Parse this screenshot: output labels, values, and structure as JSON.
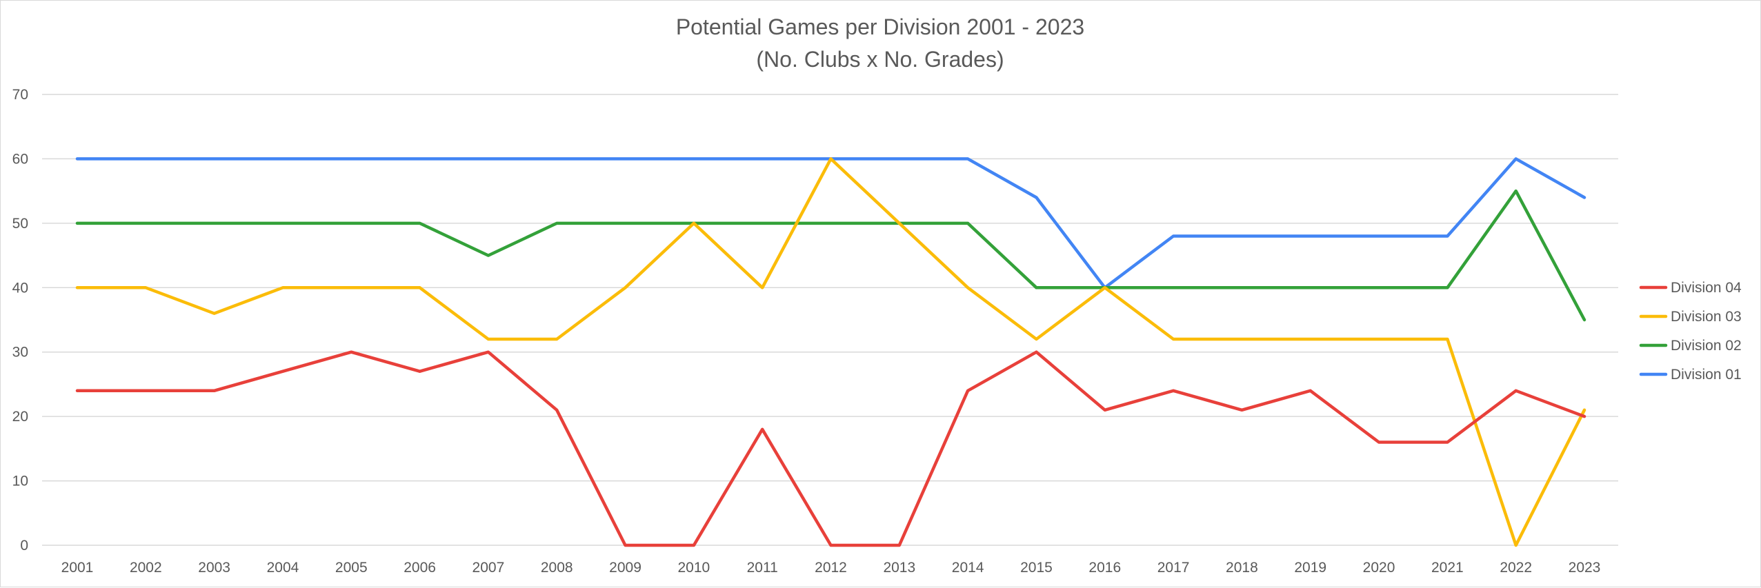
{
  "chart_data": {
    "type": "line",
    "title": "Potential Games per Division 2001 - 2023",
    "subtitle": "(No. Clubs x No. Grades)",
    "xlabel": "",
    "ylabel": "",
    "ylim": [
      0,
      70
    ],
    "y_ticks": [
      "0",
      "10",
      "20",
      "30",
      "40",
      "50",
      "60",
      "70"
    ],
    "grid": "horizontal",
    "legend_position": "right",
    "categories": [
      "2001",
      "2002",
      "2003",
      "2004",
      "2005",
      "2006",
      "2007",
      "2008",
      "2009",
      "2010",
      "2011",
      "2012",
      "2013",
      "2014",
      "2015",
      "2016",
      "2017",
      "2018",
      "2019",
      "2020",
      "2021",
      "2022",
      "2023"
    ],
    "series": [
      {
        "name": "Division 04",
        "color": "#e8403a",
        "values": [
          24,
          24,
          24,
          27,
          30,
          27,
          30,
          21,
          0,
          0,
          18,
          0,
          0,
          24,
          30,
          21,
          24,
          21,
          24,
          16,
          16,
          24,
          20
        ]
      },
      {
        "name": "Division 03",
        "color": "#fbbc09",
        "values": [
          40,
          40,
          36,
          40,
          40,
          40,
          32,
          32,
          40,
          50,
          40,
          60,
          50,
          40,
          32,
          40,
          32,
          32,
          32,
          32,
          32,
          0,
          21
        ]
      },
      {
        "name": "Division 02",
        "color": "#33a139",
        "values": [
          50,
          50,
          50,
          50,
          50,
          50,
          45,
          50,
          50,
          50,
          50,
          50,
          50,
          50,
          40,
          40,
          40,
          40,
          40,
          40,
          40,
          55,
          35
        ]
      },
      {
        "name": "Division 01",
        "color": "#4285f4",
        "values": [
          60,
          60,
          60,
          60,
          60,
          60,
          60,
          60,
          60,
          60,
          60,
          60,
          60,
          60,
          54,
          40,
          48,
          48,
          48,
          48,
          48,
          60,
          54
        ]
      }
    ]
  }
}
